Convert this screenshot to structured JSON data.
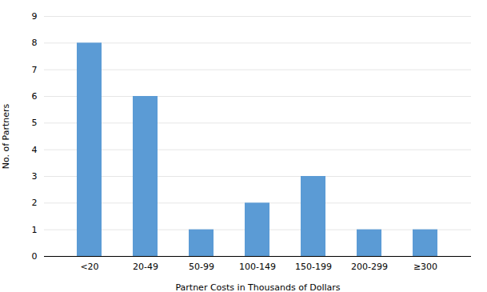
{
  "chart_data": {
    "type": "bar",
    "categories": [
      "<20",
      "20-49",
      "50-99",
      "100-149",
      "150-199",
      "200-299",
      "≥300"
    ],
    "values": [
      8,
      6,
      1,
      2,
      3,
      1,
      1
    ],
    "color": "#5b9bd5",
    "xlabel": "Partner Costs in Thousands of Dollars",
    "ylabel": "No. of Partners",
    "ylim": [
      0,
      9
    ],
    "yticks": [
      0,
      1,
      2,
      3,
      4,
      5,
      6,
      7,
      8,
      9
    ],
    "grid": true
  }
}
